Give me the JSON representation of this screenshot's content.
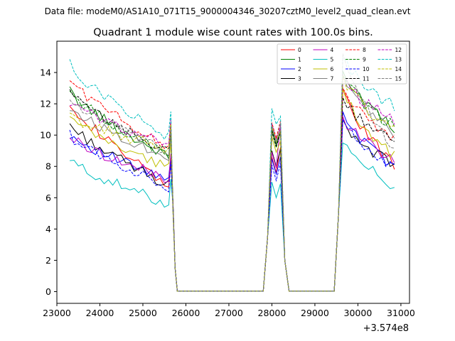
{
  "chart_data": {
    "type": "line",
    "suptitle": "Data file: modeM0/AS1A10_071T15_9000004346_30207cztM0_level2_quad_clean.evt",
    "title": "Quadrant 1 module wise count rates with 100.0s bins.",
    "xlabel": "",
    "ylabel": "",
    "x_offset_label": "+3.574e8",
    "xlim": [
      23000,
      31200
    ],
    "ylim": [
      -0.75,
      16.0
    ],
    "xticks": [
      23000,
      24000,
      25000,
      26000,
      27000,
      28000,
      29000,
      30000,
      31000
    ],
    "xtick_labels": [
      "23000",
      "24000",
      "25000",
      "26000",
      "27000",
      "28000",
      "29000",
      "30000",
      "31000"
    ],
    "yticks": [
      0,
      2,
      4,
      6,
      8,
      10,
      12,
      14
    ],
    "ytick_labels": [
      "0",
      "2",
      "4",
      "6",
      "8",
      "10",
      "12",
      "14"
    ],
    "legend_position": "top-right",
    "legend_columns": 4,
    "base_x_start": 23300,
    "bin_width": 100,
    "segments": [
      {
        "peak_x": 23300,
        "fall_x": 25650,
        "rest_from": 25800,
        "zero_x": 26100
      },
      {
        "peak_x": 27800,
        "rise_x": 28000,
        "zero_x": 28300
      },
      {
        "peak_x": 29450,
        "rise_x": 29650,
        "zero_x": 30700
      }
    ],
    "series": [
      {
        "name": "0",
        "color": "#ff0000",
        "dash": "solid",
        "seg1": [
          12.2,
          6.7
        ],
        "seg2": [
          7.6,
          9.2
        ],
        "seg3": [
          12.9,
          8.1
        ]
      },
      {
        "name": "1",
        "color": "#008000",
        "dash": "solid",
        "seg1": [
          12.8,
          8.6
        ],
        "seg2": [
          9.4,
          10.3
        ],
        "seg3": [
          14.1,
          10.4
        ]
      },
      {
        "name": "2",
        "color": "#0000ff",
        "dash": "solid",
        "seg1": [
          10.1,
          7.1
        ],
        "seg2": [
          7.5,
          8.6
        ],
        "seg3": [
          11.5,
          8.0
        ]
      },
      {
        "name": "3",
        "color": "#000000",
        "dash": "solid",
        "seg1": [
          10.7,
          6.8
        ],
        "seg2": [
          8.0,
          9.1
        ],
        "seg3": [
          11.0,
          8.0
        ]
      },
      {
        "name": "4",
        "color": "#bf00bf",
        "dash": "solid",
        "seg1": [
          9.9,
          7.2
        ],
        "seg2": [
          7.9,
          10.7
        ],
        "seg3": [
          11.2,
          8.4
        ]
      },
      {
        "name": "5",
        "color": "#00bfbf",
        "dash": "solid",
        "seg1": [
          8.4,
          5.6
        ],
        "seg2": [
          6.0,
          6.9
        ],
        "seg3": [
          9.5,
          6.8
        ]
      },
      {
        "name": "6",
        "color": "#bfbf00",
        "dash": "solid",
        "seg1": [
          11.1,
          7.9
        ],
        "seg2": [
          8.9,
          9.6
        ],
        "seg3": [
          13.0,
          8.6
        ]
      },
      {
        "name": "7",
        "color": "#7f7f7f",
        "dash": "solid",
        "seg1": [
          11.8,
          8.6
        ],
        "seg2": [
          9.3,
          10.2
        ],
        "seg3": [
          13.9,
          10.0
        ]
      },
      {
        "name": "8",
        "color": "#ff0000",
        "dash": "dashed",
        "seg1": [
          13.6,
          9.2
        ],
        "seg2": [
          9.8,
          10.9
        ],
        "seg3": [
          13.0,
          9.8
        ]
      },
      {
        "name": "9",
        "color": "#008000",
        "dash": "dashed",
        "seg1": [
          12.8,
          8.7
        ],
        "seg2": [
          9.2,
          10.2
        ],
        "seg3": [
          13.8,
          10.5
        ]
      },
      {
        "name": "10",
        "color": "#0000ff",
        "dash": "dashed",
        "seg1": [
          10.0,
          6.7
        ],
        "seg2": [
          7.1,
          8.2
        ],
        "seg3": [
          11.0,
          7.8
        ]
      },
      {
        "name": "11",
        "color": "#000000",
        "dash": "dashed",
        "seg1": [
          12.7,
          8.9
        ],
        "seg2": [
          9.3,
          10.3
        ],
        "seg3": [
          12.4,
          9.5
        ]
      },
      {
        "name": "12",
        "color": "#bf00bf",
        "dash": "dashed",
        "seg1": [
          12.1,
          9.4
        ],
        "seg2": [
          9.7,
          10.5
        ],
        "seg3": [
          13.6,
          11.0
        ]
      },
      {
        "name": "13",
        "color": "#00bfbf",
        "dash": "dashed",
        "seg1": [
          14.5,
          9.9
        ],
        "seg2": [
          10.7,
          11.2
        ],
        "seg3": [
          14.9,
          11.8
        ]
      },
      {
        "name": "14",
        "color": "#bfbf00",
        "dash": "dashed",
        "seg1": [
          11.2,
          9.1
        ],
        "seg2": [
          9.6,
          10.3
        ],
        "seg3": [
          13.8,
          10.2
        ]
      },
      {
        "name": "15",
        "color": "#7f7f7f",
        "dash": "dashed",
        "seg1": [
          12.3,
          8.9
        ],
        "seg2": [
          9.6,
          10.8
        ],
        "seg3": [
          15.2,
          9.1
        ]
      }
    ]
  }
}
